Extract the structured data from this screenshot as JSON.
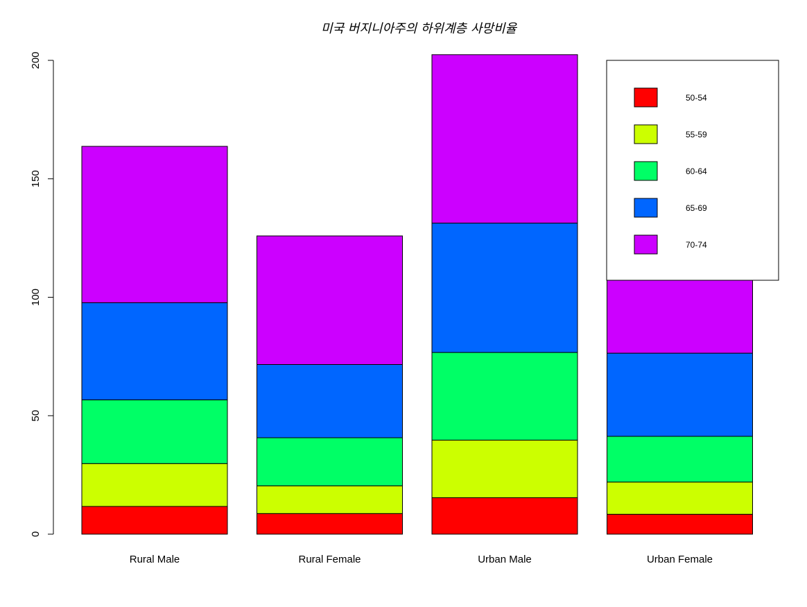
{
  "chart_data": {
    "type": "bar",
    "stacked": true,
    "title": "미국 버지니아주의 하위계층 사망비율",
    "xlabel": "",
    "ylabel": "",
    "categories": [
      "Rural Male",
      "Rural Female",
      "Urban Male",
      "Urban Female"
    ],
    "series": [
      {
        "name": "50-54",
        "color": "#FF0000",
        "values": [
          11.7,
          8.7,
          15.4,
          8.4
        ]
      },
      {
        "name": "55-59",
        "color": "#CCFF00",
        "values": [
          18.1,
          11.7,
          24.3,
          13.6
        ]
      },
      {
        "name": "60-64",
        "color": "#00FF66",
        "values": [
          26.9,
          20.3,
          37.0,
          19.3
        ]
      },
      {
        "name": "65-69",
        "color": "#0066FF",
        "values": [
          41.0,
          30.9,
          54.6,
          35.1
        ]
      },
      {
        "name": "70-74",
        "color": "#CC00FF",
        "values": [
          66.0,
          54.3,
          71.1,
          50.0
        ]
      }
    ],
    "ylim": [
      0,
      200
    ],
    "yticks": [
      "0",
      "50",
      "100",
      "150",
      "200"
    ],
    "grid": false,
    "legend_position": "top-right"
  }
}
